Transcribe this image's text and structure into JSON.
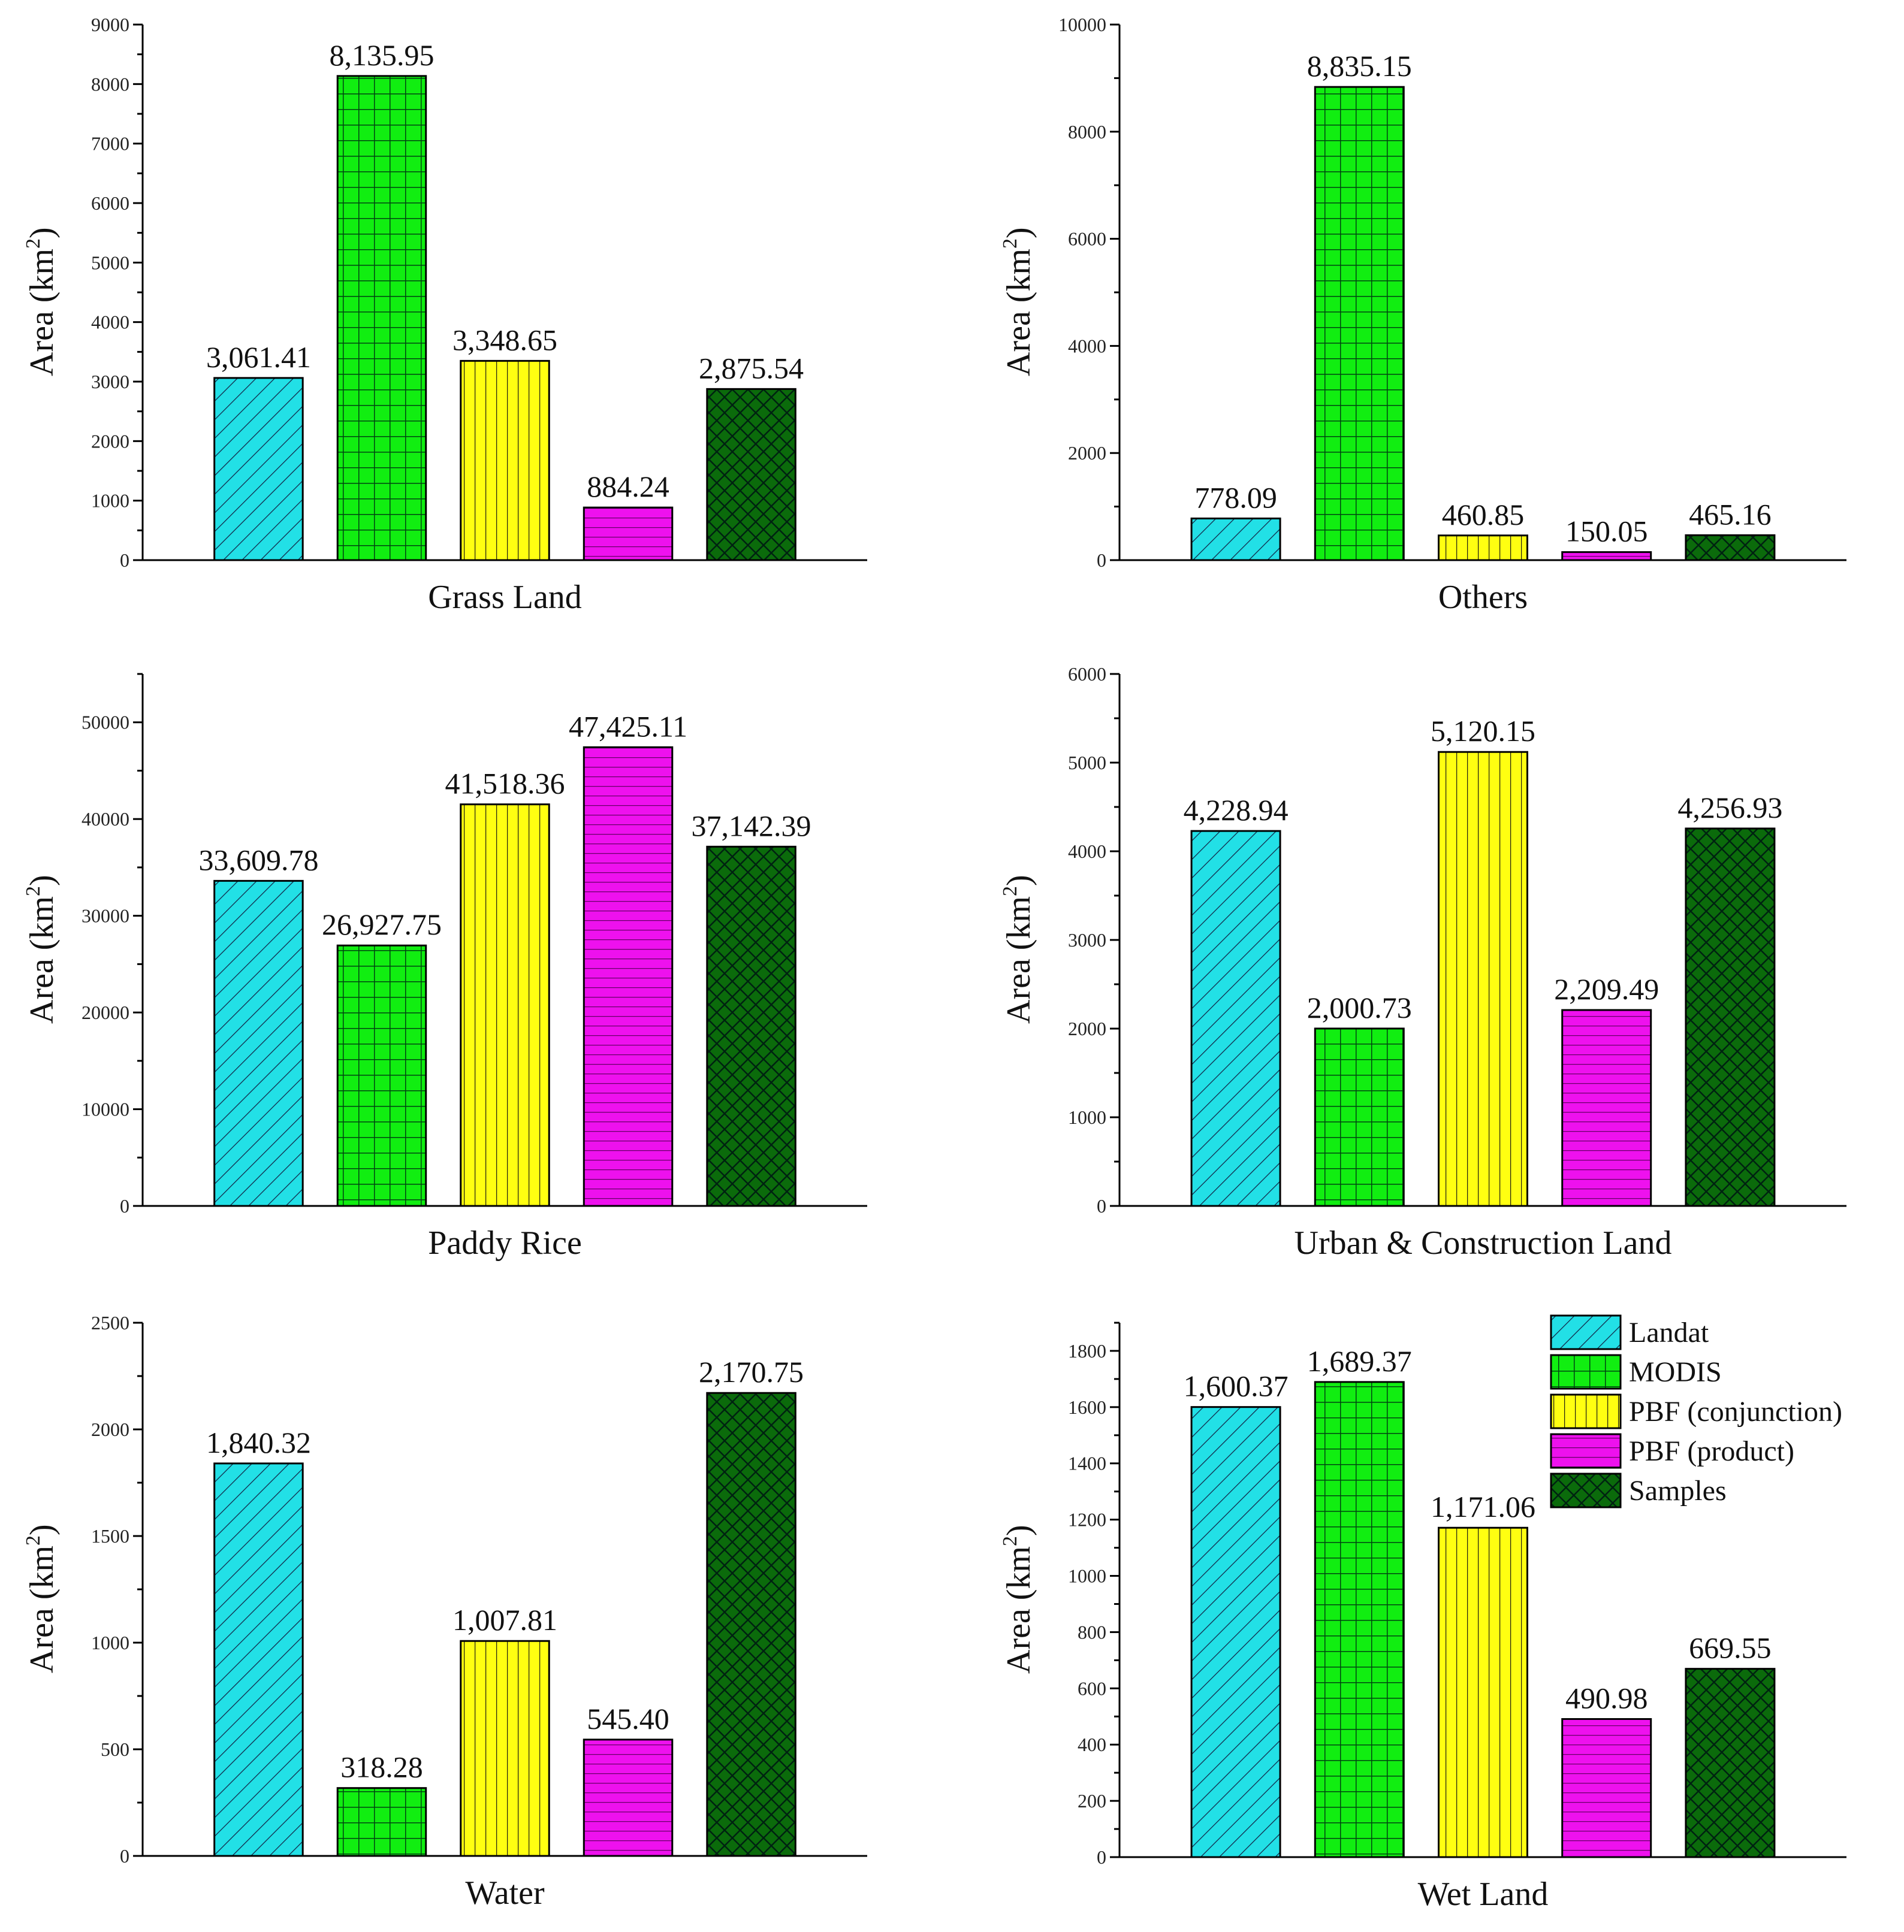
{
  "chart_data": [
    {
      "type": "bar",
      "xlabel": "Grass Land",
      "ylabel": "Area (km",
      "ylabel_sup": "2",
      "ylabel_close": ")",
      "ylim": [
        0,
        9000
      ],
      "ystep": 1000,
      "categories": [
        "Landat",
        "MODIS",
        "PBF (conjunction)",
        "PBF (product)",
        "Samples"
      ],
      "values": [
        3061.41,
        8135.95,
        3348.65,
        884.24,
        2875.54
      ],
      "labels": [
        "3,061.41",
        "8,135.95",
        "3,348.65",
        "884.24",
        "2,875.54"
      ]
    },
    {
      "type": "bar",
      "xlabel": "Others",
      "ylabel": "Area (km",
      "ylabel_sup": "2",
      "ylabel_close": ")",
      "ylim": [
        0,
        10000
      ],
      "ystep": 2000,
      "categories": [
        "Landat",
        "MODIS",
        "PBF (conjunction)",
        "PBF (product)",
        "Samples"
      ],
      "values": [
        778.09,
        8835.15,
        460.85,
        150.05,
        465.16
      ],
      "labels": [
        "778.09",
        "8,835.15",
        "460.85",
        "150.05",
        "465.16"
      ]
    },
    {
      "type": "bar",
      "xlabel": "Paddy Rice",
      "ylabel": "Area (km",
      "ylabel_sup": "2",
      "ylabel_close": ")",
      "ylim": [
        0,
        55000
      ],
      "ystep": 10000,
      "categories": [
        "Landat",
        "MODIS",
        "PBF (conjunction)",
        "PBF (product)",
        "Samples"
      ],
      "values": [
        33609.78,
        26927.75,
        41518.36,
        47425.11,
        37142.39
      ],
      "labels": [
        "33,609.78",
        "26,927.75",
        "41,518.36",
        "47,425.11",
        "37,142.39"
      ]
    },
    {
      "type": "bar",
      "xlabel": "Urban & Construction Land",
      "ylabel": "Area (km",
      "ylabel_sup": "2",
      "ylabel_close": ")",
      "ylim": [
        0,
        6000
      ],
      "ystep": 1000,
      "categories": [
        "Landat",
        "MODIS",
        "PBF (conjunction)",
        "PBF (product)",
        "Samples"
      ],
      "values": [
        4228.94,
        2000.73,
        5120.15,
        2209.49,
        4256.93
      ],
      "labels": [
        "4,228.94",
        "2,000.73",
        "5,120.15",
        "2,209.49",
        "4,256.93"
      ]
    },
    {
      "type": "bar",
      "xlabel": "Water",
      "ylabel": "Area (km",
      "ylabel_sup": "2",
      "ylabel_close": ")",
      "ylim": [
        0,
        2500
      ],
      "ystep": 500,
      "categories": [
        "Landat",
        "MODIS",
        "PBF (conjunction)",
        "PBF (product)",
        "Samples"
      ],
      "values": [
        1840.32,
        318.28,
        1007.81,
        545.4,
        2170.75
      ],
      "labels": [
        "1,840.32",
        "318.28",
        "1,007.81",
        "545.40",
        "2,170.75"
      ]
    },
    {
      "type": "bar",
      "xlabel": "Wet Land",
      "ylabel": "Area (km",
      "ylabel_sup": "2",
      "ylabel_close": ")",
      "ylim": [
        0,
        1900
      ],
      "ystep": 200,
      "categories": [
        "Landat",
        "MODIS",
        "PBF (conjunction)",
        "PBF (product)",
        "Samples"
      ],
      "values": [
        1600.37,
        1689.37,
        1171.06,
        490.98,
        669.55
      ],
      "labels": [
        "1,600.37",
        "1,689.37",
        "1,171.06",
        "490.98",
        "669.55"
      ],
      "legend_position": "top-right"
    }
  ],
  "legend": [
    {
      "label": "Landat",
      "color": "#22e0e6",
      "pattern": "diagonal"
    },
    {
      "label": "MODIS",
      "color": "#11ee11",
      "pattern": "grid"
    },
    {
      "label": "PBF (conjunction)",
      "color": "#ffff11",
      "pattern": "vertical"
    },
    {
      "label": "PBF (product)",
      "color": "#ee11ee",
      "pattern": "horizontal"
    },
    {
      "label": "Samples",
      "color": "#0b6b0b",
      "pattern": "crosshatch"
    }
  ]
}
